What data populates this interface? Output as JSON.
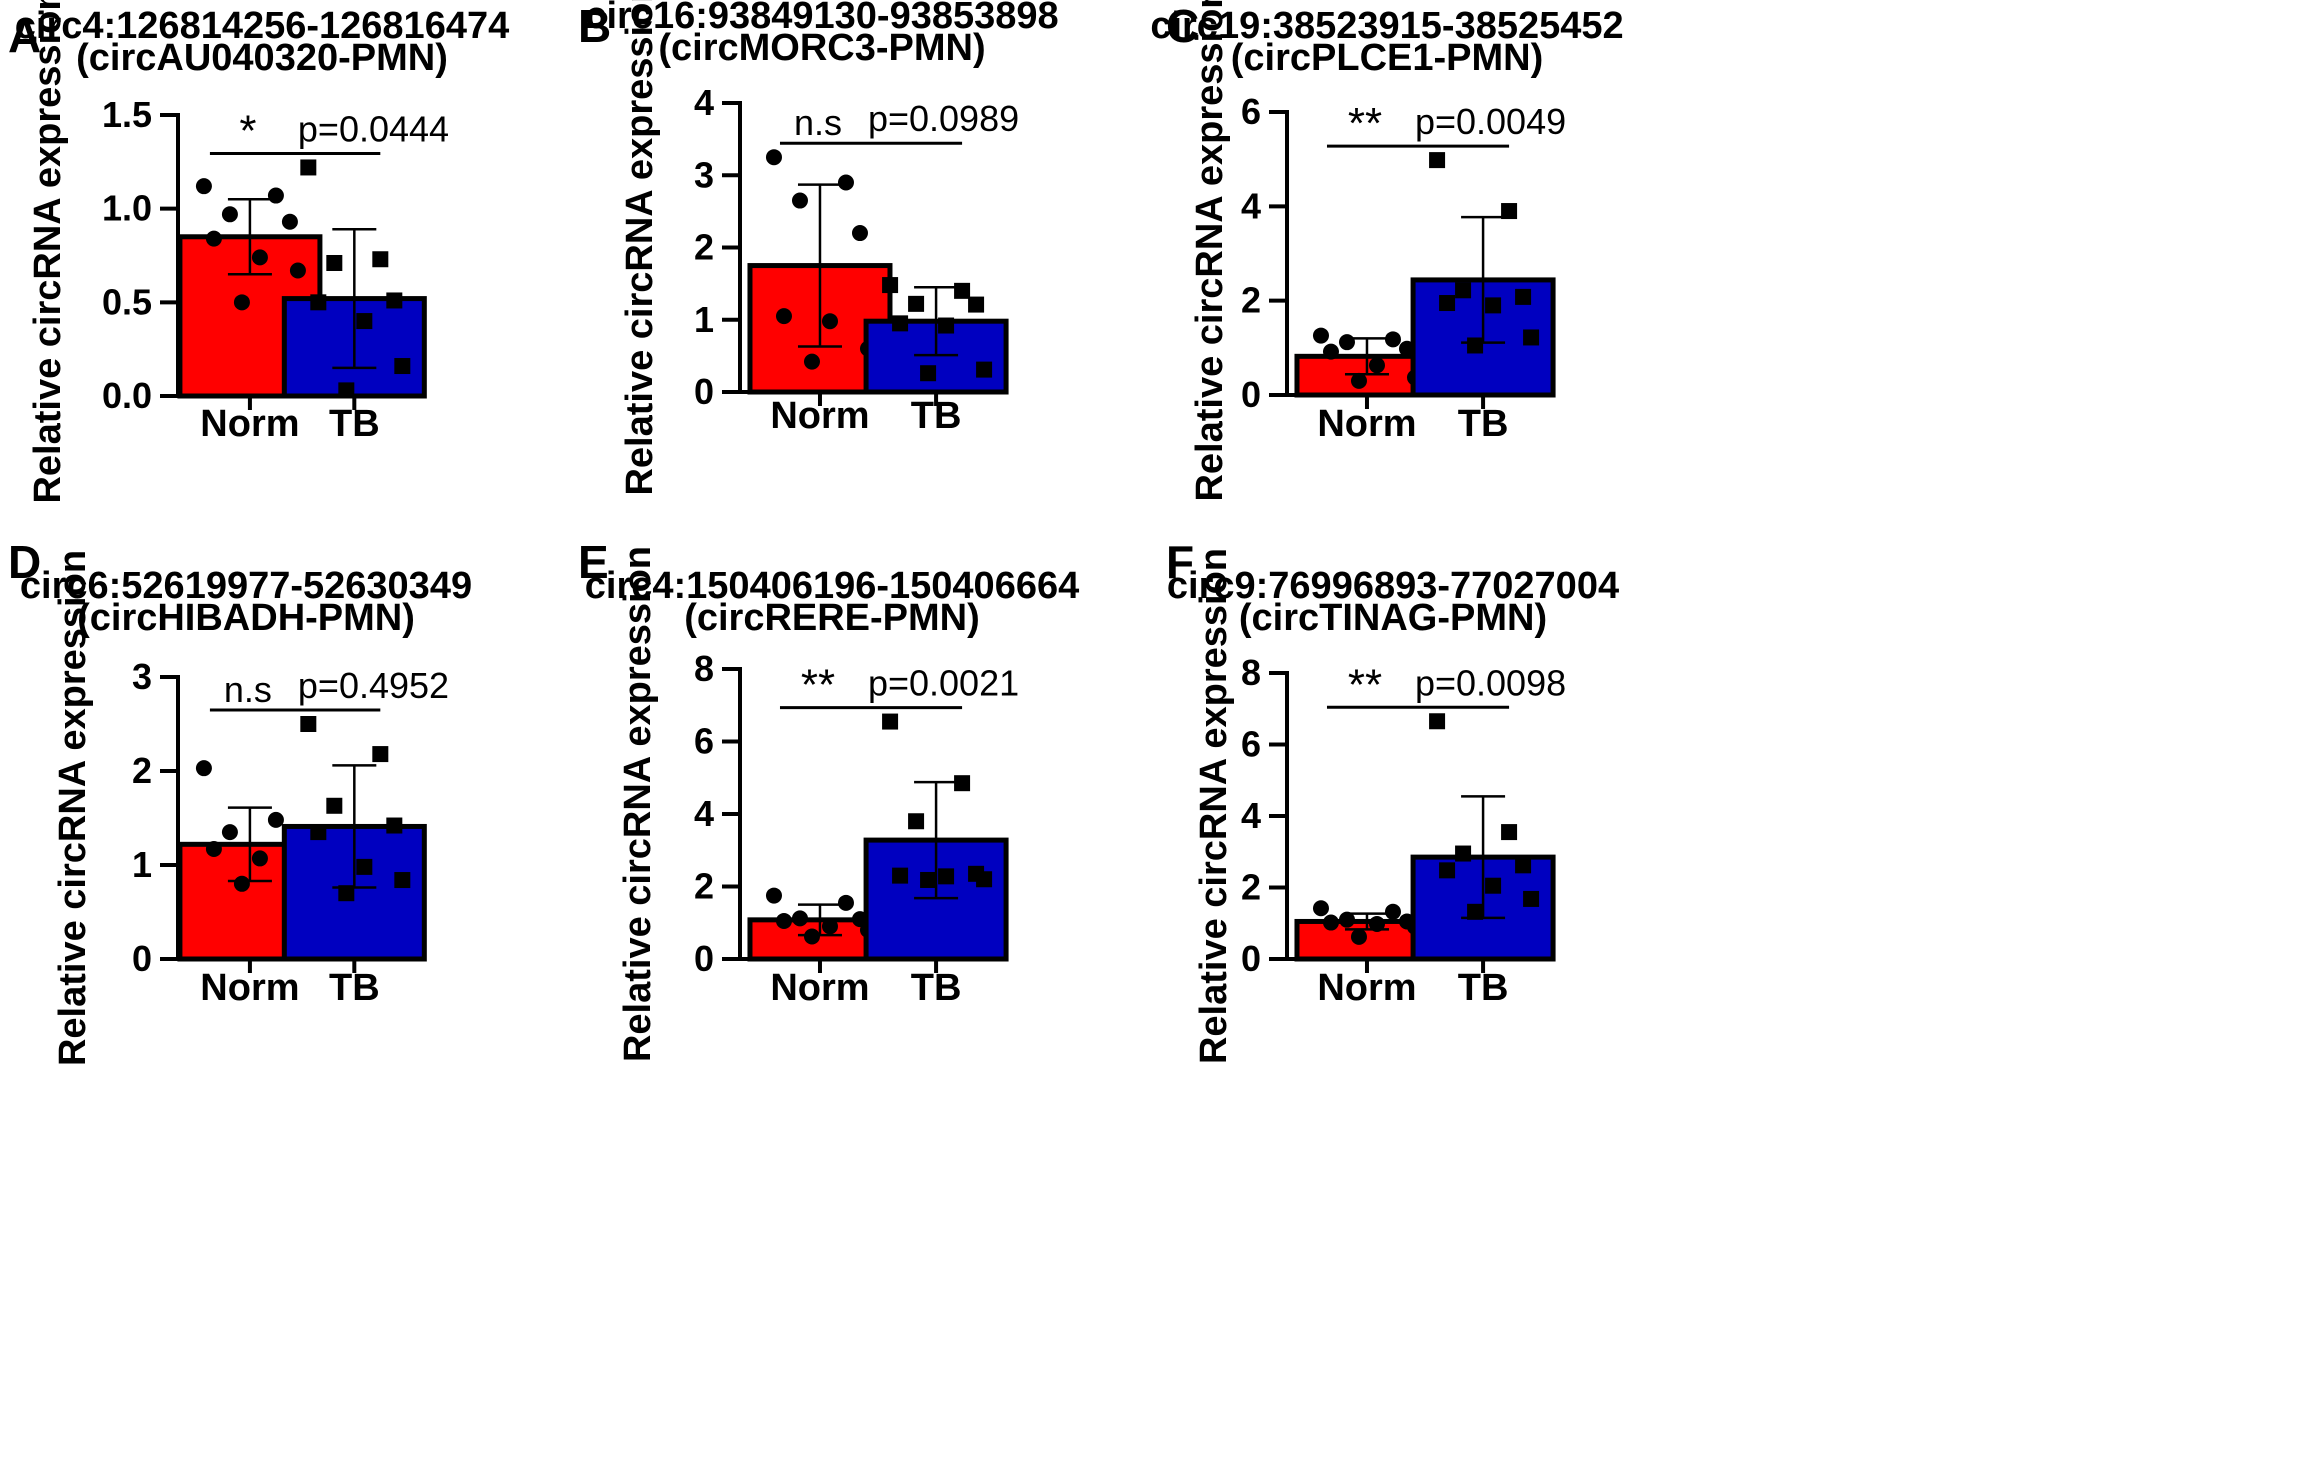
{
  "chart_data": [
    {
      "type": "bar",
      "panel": "A",
      "title": [
        "circ4:126814256-126816474",
        "(circAU040320-PMN)"
      ],
      "ylabel": "Relative circRNA expression",
      "categories": [
        "Norm",
        "TB"
      ],
      "ylim": [
        0,
        1.5
      ],
      "yticks": [
        0.0,
        0.5,
        1.0,
        1.5
      ],
      "ytick_labels": [
        "0.0",
        "0.5",
        "1.0",
        "1.5"
      ],
      "series": [
        {
          "name": "Norm",
          "color": "#ff0000",
          "mean": 0.85,
          "sd": 0.2,
          "marker": "circle",
          "points": [
            1.12,
            1.07,
            0.97,
            0.93,
            0.84,
            0.74,
            0.67,
            0.5
          ]
        },
        {
          "name": "TB",
          "color": "#0000c0",
          "mean": 0.52,
          "sd": 0.37,
          "marker": "square",
          "points": [
            1.22,
            0.73,
            0.71,
            0.51,
            0.5,
            0.4,
            0.16,
            0.03
          ]
        }
      ],
      "significance": {
        "mark": "*",
        "p": "p=0.0444"
      }
    },
    {
      "type": "bar",
      "panel": "B",
      "title": [
        "circ16:93849130-93853898",
        "(circMORC3-PMN)"
      ],
      "ylabel": "Relative circRNA expression",
      "categories": [
        "Norm",
        "TB"
      ],
      "ylim": [
        0,
        4
      ],
      "yticks": [
        0,
        1,
        2,
        3,
        4
      ],
      "ytick_labels": [
        "0",
        "1",
        "2",
        "3",
        "4"
      ],
      "series": [
        {
          "name": "Norm",
          "color": "#ff0000",
          "mean": 1.75,
          "sd": 1.12,
          "marker": "circle",
          "points": [
            3.25,
            2.9,
            2.65,
            2.2,
            1.05,
            0.98,
            0.6,
            0.42
          ]
        },
        {
          "name": "TB",
          "color": "#0000c0",
          "mean": 0.98,
          "sd": 0.47,
          "marker": "square",
          "points": [
            1.48,
            1.4,
            1.22,
            1.21,
            0.95,
            0.92,
            0.31,
            0.26
          ]
        }
      ],
      "significance": {
        "mark": "n.s",
        "p": "p=0.0989"
      }
    },
    {
      "type": "bar",
      "panel": "C",
      "title": [
        "circ19:38523915-38525452",
        "(circPLCE1-PMN)"
      ],
      "ylabel": "Relative circRNA expression",
      "categories": [
        "Norm",
        "TB"
      ],
      "ylim": [
        0,
        6
      ],
      "yticks": [
        0,
        2,
        4,
        6
      ],
      "ytick_labels": [
        "0",
        "2",
        "4",
        "6"
      ],
      "series": [
        {
          "name": "Norm",
          "color": "#ff0000",
          "mean": 0.82,
          "sd": 0.38,
          "marker": "circle",
          "points": [
            1.26,
            1.18,
            1.12,
            0.98,
            0.92,
            0.63,
            0.37,
            0.3
          ]
        },
        {
          "name": "TB",
          "color": "#0000c0",
          "mean": 2.44,
          "sd": 1.33,
          "marker": "square",
          "points": [
            4.98,
            3.9,
            2.22,
            2.08,
            1.95,
            1.9,
            1.22,
            1.05
          ]
        }
      ],
      "significance": {
        "mark": "**",
        "p": "p=0.0049"
      }
    },
    {
      "type": "bar",
      "panel": "D",
      "title": [
        "circ6:52619977-52630349",
        "(circHIBADH-PMN)"
      ],
      "ylabel": "Relative circRNA expression",
      "categories": [
        "Norm",
        "TB"
      ],
      "ylim": [
        0,
        3
      ],
      "yticks": [
        0,
        1,
        2,
        3
      ],
      "ytick_labels": [
        "0",
        "1",
        "2",
        "3"
      ],
      "series": [
        {
          "name": "Norm",
          "color": "#ff0000",
          "mean": 1.22,
          "sd": 0.39,
          "marker": "circle",
          "points": [
            2.03,
            1.48,
            1.35,
            1.2,
            1.17,
            1.07,
            0.82,
            0.8
          ]
        },
        {
          "name": "TB",
          "color": "#0000c0",
          "mean": 1.41,
          "sd": 0.65,
          "marker": "square",
          "points": [
            2.5,
            2.18,
            1.63,
            1.42,
            1.35,
            0.98,
            0.84,
            0.7
          ]
        }
      ],
      "significance": {
        "mark": "n.s",
        "p": "p=0.4952"
      }
    },
    {
      "type": "bar",
      "panel": "E",
      "title": [
        "circ4:150406196-150406664",
        "(circRERE-PMN)"
      ],
      "ylabel": "Relative circRNA expression",
      "categories": [
        "Norm",
        "TB"
      ],
      "ylim": [
        0,
        8
      ],
      "yticks": [
        0,
        2,
        4,
        6,
        8
      ],
      "ytick_labels": [
        "0",
        "2",
        "4",
        "6",
        "8"
      ],
      "series": [
        {
          "name": "Norm",
          "color": "#ff0000",
          "mean": 1.08,
          "sd": 0.42,
          "marker": "circle",
          "points": [
            1.75,
            1.55,
            1.12,
            1.1,
            1.05,
            0.9,
            0.8,
            0.62
          ]
        },
        {
          "name": "TB",
          "color": "#0000c0",
          "mean": 3.28,
          "sd": 1.6,
          "marker": "square",
          "points": [
            6.55,
            4.85,
            3.8,
            2.35,
            2.3,
            2.28,
            2.2,
            2.18
          ]
        }
      ],
      "significance": {
        "mark": "**",
        "p": "p=0.0021"
      }
    },
    {
      "type": "bar",
      "panel": "F",
      "title": [
        "circ9:76996893-77027004",
        "(circTINAG-PMN)"
      ],
      "ylabel": "Relative circRNA expression",
      "categories": [
        "Norm",
        "TB"
      ],
      "ylim": [
        0,
        8
      ],
      "yticks": [
        0,
        2,
        4,
        6,
        8
      ],
      "ytick_labels": [
        "0",
        "2",
        "4",
        "6",
        "8"
      ],
      "series": [
        {
          "name": "Norm",
          "color": "#ff0000",
          "mean": 1.05,
          "sd": 0.22,
          "marker": "circle",
          "points": [
            1.42,
            1.32,
            1.1,
            1.05,
            1.02,
            0.98,
            0.9,
            0.62
          ]
        },
        {
          "name": "TB",
          "color": "#0000c0",
          "mean": 2.85,
          "sd": 1.7,
          "marker": "square",
          "points": [
            6.65,
            3.55,
            2.95,
            2.62,
            2.48,
            2.05,
            1.68,
            1.32
          ]
        }
      ],
      "significance": {
        "mark": "**",
        "p": "p=0.0098"
      }
    }
  ]
}
